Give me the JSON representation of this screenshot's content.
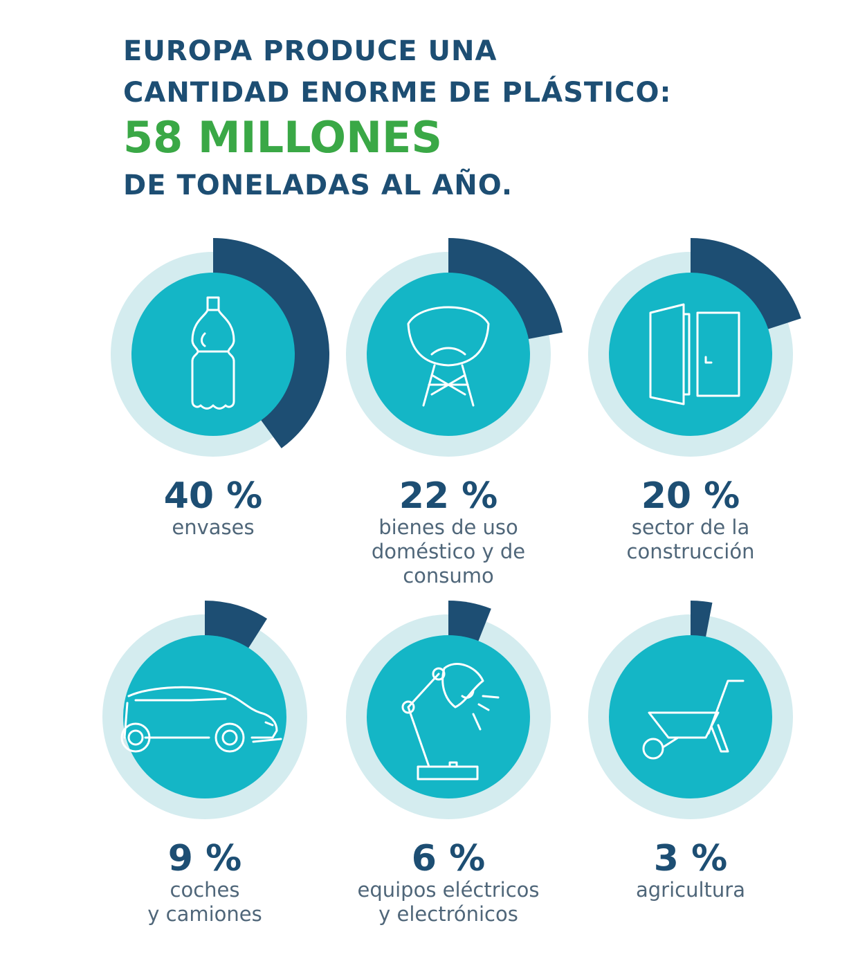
{
  "header": {
    "line1": "EUROPA PRODUCE UNA",
    "line2": "CANTIDAD ENORME DE PLÁSTICO:",
    "highlight": "58 MILLONES",
    "line3": "DE TONELADAS AL AÑO."
  },
  "colors": {
    "title": "#1d4e73",
    "highlight": "#3aa846",
    "ring_bg": "#d4ecef",
    "disc": "#14b6c6",
    "arc": "#1d4e73",
    "label": "#4f6679"
  },
  "chart_data": {
    "type": "pie",
    "unit": "%",
    "items": [
      {
        "value": 40,
        "value_label": "40 %",
        "label_lines": [
          "envases"
        ],
        "icon": "bottle-icon"
      },
      {
        "value": 22,
        "value_label": "22 %",
        "label_lines": [
          "bienes de uso",
          "doméstico y de",
          "consumo"
        ],
        "icon": "chair-icon"
      },
      {
        "value": 20,
        "value_label": "20 %",
        "label_lines": [
          "sector de la",
          "construcción"
        ],
        "icon": "door-icon"
      },
      {
        "value": 9,
        "value_label": "9 %",
        "label_lines": [
          "coches",
          "y camiones"
        ],
        "icon": "car-icon"
      },
      {
        "value": 6,
        "value_label": "6 %",
        "label_lines": [
          "equipos eléctricos",
          "y electrónicos"
        ],
        "icon": "lamp-icon"
      },
      {
        "value": 3,
        "value_label": "3 %",
        "label_lines": [
          "agricultura"
        ],
        "icon": "wheelbarrow-icon"
      }
    ]
  }
}
